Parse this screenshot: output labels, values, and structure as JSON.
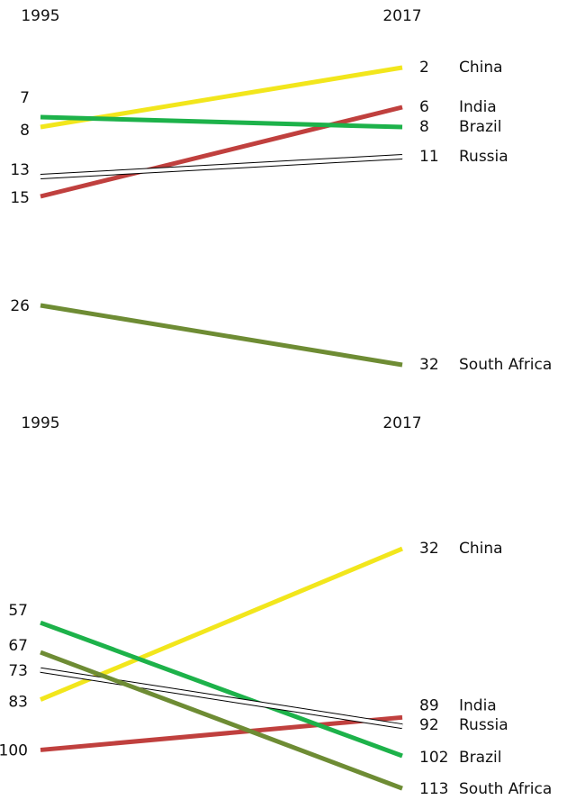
{
  "chart_data": [
    {
      "type": "slope",
      "x": [
        "1995",
        "2017"
      ],
      "ylim": [
        0,
        34
      ],
      "inverted": true,
      "series": [
        {
          "name": "China",
          "color": "#f2e61c",
          "values": [
            8,
            2
          ]
        },
        {
          "name": "India",
          "color": "#c0403e",
          "values": [
            15,
            6
          ]
        },
        {
          "name": "Brazil",
          "color": "#1db24a",
          "values": [
            7,
            8
          ]
        },
        {
          "name": "Russia",
          "color": "#ffffff",
          "edgecolor": "#000000",
          "values": [
            13,
            11
          ]
        },
        {
          "name": "South Africa",
          "color": "#6e8c34",
          "values": [
            26,
            32
          ]
        }
      ]
    },
    {
      "type": "slope",
      "x": [
        "1995",
        "2017"
      ],
      "ylim": [
        0,
        115
      ],
      "inverted": true,
      "series": [
        {
          "name": "China",
          "color": "#f2e61c",
          "values": [
            83,
            32
          ]
        },
        {
          "name": "India",
          "color": "#c0403e",
          "values": [
            100,
            89
          ]
        },
        {
          "name": "Brazil",
          "color": "#1db24a",
          "values": [
            57,
            102
          ]
        },
        {
          "name": "Russia",
          "color": "#ffffff",
          "edgecolor": "#000000",
          "values": [
            73,
            92
          ]
        },
        {
          "name": "South Africa",
          "color": "#6e8c34",
          "values": [
            67,
            113
          ]
        }
      ]
    }
  ]
}
